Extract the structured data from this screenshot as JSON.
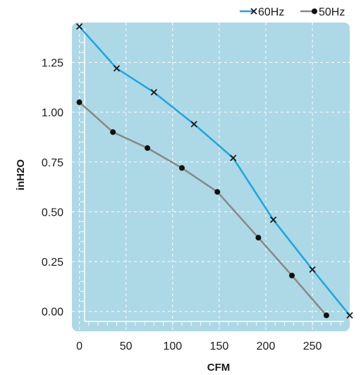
{
  "chart_data": {
    "type": "line",
    "xlabel": "CFM",
    "ylabel": "inH2O",
    "xlim": [
      -8,
      290
    ],
    "ylim": [
      -0.1,
      1.45
    ],
    "xticks": [
      0,
      50,
      100,
      150,
      200,
      250
    ],
    "yticks": [
      0.0,
      0.25,
      0.5,
      0.75,
      1.0,
      1.25
    ],
    "ytick_labels": [
      "0.00",
      "0.25",
      "0.50",
      "0.75",
      "1.00",
      "1.25"
    ],
    "grid": true,
    "legend_position": "top-right",
    "plot_background": "#add8e6",
    "series": [
      {
        "name": "60Hz",
        "marker": "x",
        "color": "#1aa6e0",
        "x": [
          0,
          40,
          80,
          123,
          165,
          208,
          250,
          290
        ],
        "y": [
          1.43,
          1.22,
          1.1,
          0.94,
          0.77,
          0.46,
          0.21,
          -0.02
        ]
      },
      {
        "name": "50Hz",
        "marker": "dot",
        "color": "#888888",
        "x": [
          0,
          36,
          73,
          110,
          148,
          192,
          228,
          265
        ],
        "y": [
          1.05,
          0.9,
          0.82,
          0.72,
          0.6,
          0.37,
          0.18,
          -0.02
        ]
      }
    ]
  }
}
